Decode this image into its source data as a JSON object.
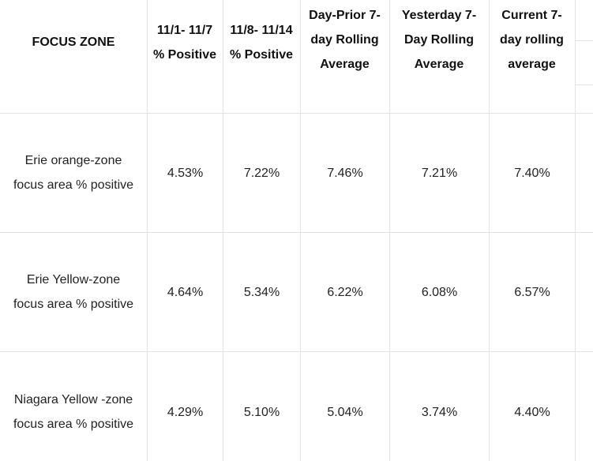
{
  "table": {
    "headers": [
      "FOCUS ZONE",
      "11/1- 11/7 % Positive",
      "11/8- 11/14 % Positive",
      "Day-Prior 7-day Rolling Average",
      "Yesterday 7-Day Rolling Average",
      "Current 7-day rolling average"
    ],
    "rows": [
      {
        "label": "Erie orange-zone focus area % positive",
        "values": [
          "4.53%",
          "7.22%",
          "7.46%",
          "7.21%",
          "7.40%"
        ]
      },
      {
        "label": "Erie Yellow-zone focus area % positive",
        "values": [
          "4.64%",
          "5.34%",
          "6.22%",
          "6.08%",
          "6.57%"
        ]
      },
      {
        "label": "Niagara Yellow -zone focus area % positive",
        "values": [
          "4.29%",
          "5.10%",
          "5.04%",
          "3.74%",
          "4.40%"
        ]
      }
    ]
  }
}
